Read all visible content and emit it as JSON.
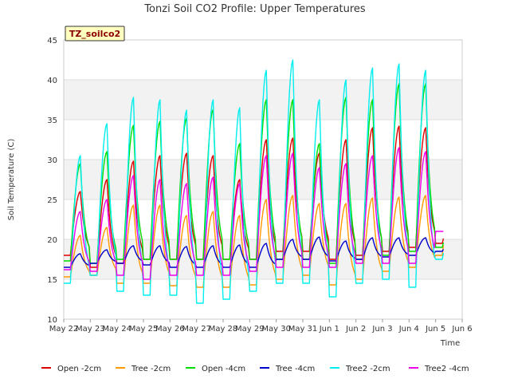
{
  "chart_data": {
    "type": "line",
    "title": "Tonzi Soil CO2 Profile: Upper Temperatures",
    "xlabel": "Time",
    "ylabel": "Soil Temperature (C)",
    "site_badge": "TZ_soilco2",
    "ylim": [
      10,
      45
    ],
    "xlim": [
      0,
      15
    ],
    "y_ticks": [
      10,
      15,
      20,
      25,
      30,
      35,
      40,
      45
    ],
    "x_ticks": [
      {
        "x": 0,
        "label": "May 22"
      },
      {
        "x": 1,
        "label": "May 23"
      },
      {
        "x": 2,
        "label": "May 24"
      },
      {
        "x": 3,
        "label": "May 25"
      },
      {
        "x": 4,
        "label": "May 26"
      },
      {
        "x": 5,
        "label": "May 27"
      },
      {
        "x": 6,
        "label": "May 28"
      },
      {
        "x": 7,
        "label": "May 29"
      },
      {
        "x": 8,
        "label": "May 30"
      },
      {
        "x": 9,
        "label": "May 31"
      },
      {
        "x": 10,
        "label": "Jun 1"
      },
      {
        "x": 11,
        "label": "Jun 2"
      },
      {
        "x": 12,
        "label": "Jun 3"
      },
      {
        "x": 13,
        "label": "Jun 4"
      },
      {
        "x": 14,
        "label": "Jun 5"
      },
      {
        "x": 15,
        "label": "Jun 6"
      }
    ],
    "grid": true,
    "legend_position": "bottom",
    "series": [
      {
        "name": "Open -2cm",
        "color": "#dd0000",
        "daily_min": [
          18.0,
          16.5,
          17.0,
          17.5,
          17.5,
          17.5,
          17.5,
          17.5,
          18.5,
          18.5,
          17.5,
          18.0,
          18.5,
          19.0,
          19.5
        ],
        "daily_max": [
          26.0,
          27.5,
          29.8,
          30.5,
          30.8,
          30.5,
          27.5,
          32.5,
          32.7,
          30.8,
          32.5,
          34.0,
          34.2,
          34.0,
          23.0
        ]
      },
      {
        "name": "Tree -2cm",
        "color": "#ff9900",
        "daily_min": [
          15.3,
          15.5,
          14.5,
          14.5,
          14.2,
          14.0,
          14.0,
          14.3,
          15.0,
          15.5,
          14.3,
          15.0,
          16.0,
          16.5,
          18.0
        ],
        "daily_max": [
          20.5,
          21.5,
          24.3,
          24.3,
          23.0,
          23.5,
          23.0,
          25.0,
          25.5,
          24.5,
          24.5,
          25.2,
          25.3,
          25.5,
          25.5
        ],
        "initial": 15.3
      },
      {
        "name": "Open -4cm",
        "color": "#00dd00",
        "daily_min": [
          17.3,
          17.0,
          17.5,
          17.5,
          17.5,
          17.5,
          17.5,
          17.5,
          17.5,
          17.5,
          17.0,
          17.5,
          18.0,
          18.5,
          19.0
        ],
        "daily_max": [
          29.5,
          31.0,
          34.3,
          34.8,
          35.2,
          36.3,
          32.0,
          37.5,
          37.5,
          32.0,
          37.8,
          37.5,
          39.5,
          39.5,
          22.5
        ]
      },
      {
        "name": "Tree -4cm",
        "color": "#0000cc",
        "daily_min": [
          16.5,
          17.0,
          17.0,
          16.8,
          16.5,
          16.5,
          16.5,
          16.5,
          17.5,
          17.5,
          17.3,
          17.5,
          17.8,
          18.0,
          18.5
        ],
        "daily_max": [
          18.2,
          18.7,
          19.2,
          19.2,
          19.1,
          19.2,
          19.3,
          19.5,
          20.0,
          20.3,
          19.8,
          20.2,
          20.2,
          20.2,
          20.0
        ]
      },
      {
        "name": "Tree2 -2cm",
        "color": "#00eeee",
        "daily_min": [
          14.5,
          15.5,
          13.5,
          13.0,
          13.0,
          12.0,
          12.5,
          13.5,
          14.5,
          14.5,
          12.8,
          14.5,
          15.0,
          14.0,
          17.5
        ],
        "daily_max": [
          30.5,
          34.5,
          37.8,
          37.5,
          36.2,
          37.5,
          36.5,
          41.2,
          42.5,
          37.5,
          40.0,
          41.5,
          42.0,
          41.2,
          22.0
        ]
      },
      {
        "name": "Tree2 -4cm",
        "color": "#ee00ee",
        "daily_min": [
          16.2,
          16.0,
          15.5,
          15.0,
          15.5,
          15.5,
          15.5,
          16.0,
          16.5,
          16.5,
          16.5,
          17.0,
          17.0,
          17.0,
          21.0
        ],
        "daily_max": [
          23.5,
          25.0,
          28.0,
          27.5,
          27.0,
          27.8,
          27.0,
          30.5,
          30.8,
          29.0,
          29.5,
          30.5,
          31.5,
          31.0,
          21.0
        ]
      }
    ],
    "data_points_per_day": 24,
    "x_end": 14.33
  }
}
